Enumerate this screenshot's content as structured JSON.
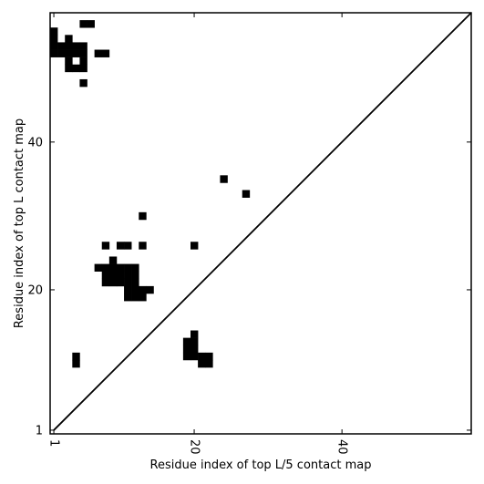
{
  "chart_data": {
    "type": "heatmap",
    "xlabel": "Residue index of top L/5 contact map",
    "ylabel": "Residue index of top L contact map",
    "xlim": [
      0.5,
      57.5
    ],
    "ylim": [
      0.5,
      57.5
    ],
    "x_ticks": [
      {
        "value": 1,
        "label": "1"
      },
      {
        "value": 20,
        "label": "20"
      },
      {
        "value": 40,
        "label": "40"
      }
    ],
    "y_ticks": [
      {
        "value": 1,
        "label": "1"
      },
      {
        "value": 20,
        "label": "20"
      },
      {
        "value": 40,
        "label": "40"
      }
    ],
    "diagonal": true,
    "cell_color": "#000000",
    "background_color": "#ffffff",
    "contacts": [
      {
        "x": 5,
        "y": 56
      },
      {
        "x": 6,
        "y": 56
      },
      {
        "x": 1,
        "y": 55
      },
      {
        "x": 1,
        "y": 54
      },
      {
        "x": 3,
        "y": 54
      },
      {
        "x": 1,
        "y": 53
      },
      {
        "x": 2,
        "y": 53
      },
      {
        "x": 3,
        "y": 53
      },
      {
        "x": 4,
        "y": 53
      },
      {
        "x": 5,
        "y": 53
      },
      {
        "x": 1,
        "y": 52
      },
      {
        "x": 2,
        "y": 52
      },
      {
        "x": 3,
        "y": 52
      },
      {
        "x": 4,
        "y": 52
      },
      {
        "x": 5,
        "y": 52
      },
      {
        "x": 7,
        "y": 52
      },
      {
        "x": 8,
        "y": 52
      },
      {
        "x": 3,
        "y": 51
      },
      {
        "x": 5,
        "y": 51
      },
      {
        "x": 3,
        "y": 50
      },
      {
        "x": 4,
        "y": 50
      },
      {
        "x": 5,
        "y": 50
      },
      {
        "x": 5,
        "y": 48
      },
      {
        "x": 24,
        "y": 35
      },
      {
        "x": 27,
        "y": 33
      },
      {
        "x": 13,
        "y": 30
      },
      {
        "x": 8,
        "y": 26
      },
      {
        "x": 10,
        "y": 26
      },
      {
        "x": 11,
        "y": 26
      },
      {
        "x": 13,
        "y": 26
      },
      {
        "x": 20,
        "y": 26
      },
      {
        "x": 9,
        "y": 24
      },
      {
        "x": 7,
        "y": 23
      },
      {
        "x": 8,
        "y": 23
      },
      {
        "x": 9,
        "y": 23
      },
      {
        "x": 10,
        "y": 23
      },
      {
        "x": 11,
        "y": 23
      },
      {
        "x": 12,
        "y": 23
      },
      {
        "x": 8,
        "y": 22
      },
      {
        "x": 9,
        "y": 22
      },
      {
        "x": 10,
        "y": 22
      },
      {
        "x": 11,
        "y": 22
      },
      {
        "x": 12,
        "y": 22
      },
      {
        "x": 8,
        "y": 21
      },
      {
        "x": 9,
        "y": 21
      },
      {
        "x": 10,
        "y": 21
      },
      {
        "x": 11,
        "y": 21
      },
      {
        "x": 12,
        "y": 21
      },
      {
        "x": 11,
        "y": 20
      },
      {
        "x": 12,
        "y": 20
      },
      {
        "x": 13,
        "y": 20
      },
      {
        "x": 14,
        "y": 20
      },
      {
        "x": 11,
        "y": 19
      },
      {
        "x": 12,
        "y": 19
      },
      {
        "x": 13,
        "y": 19
      },
      {
        "x": 20,
        "y": 14
      },
      {
        "x": 19,
        "y": 13
      },
      {
        "x": 20,
        "y": 13
      },
      {
        "x": 19,
        "y": 12
      },
      {
        "x": 20,
        "y": 12
      },
      {
        "x": 4,
        "y": 11
      },
      {
        "x": 19,
        "y": 11
      },
      {
        "x": 20,
        "y": 11
      },
      {
        "x": 21,
        "y": 11
      },
      {
        "x": 22,
        "y": 11
      },
      {
        "x": 4,
        "y": 10
      },
      {
        "x": 21,
        "y": 10
      },
      {
        "x": 22,
        "y": 10
      }
    ]
  }
}
